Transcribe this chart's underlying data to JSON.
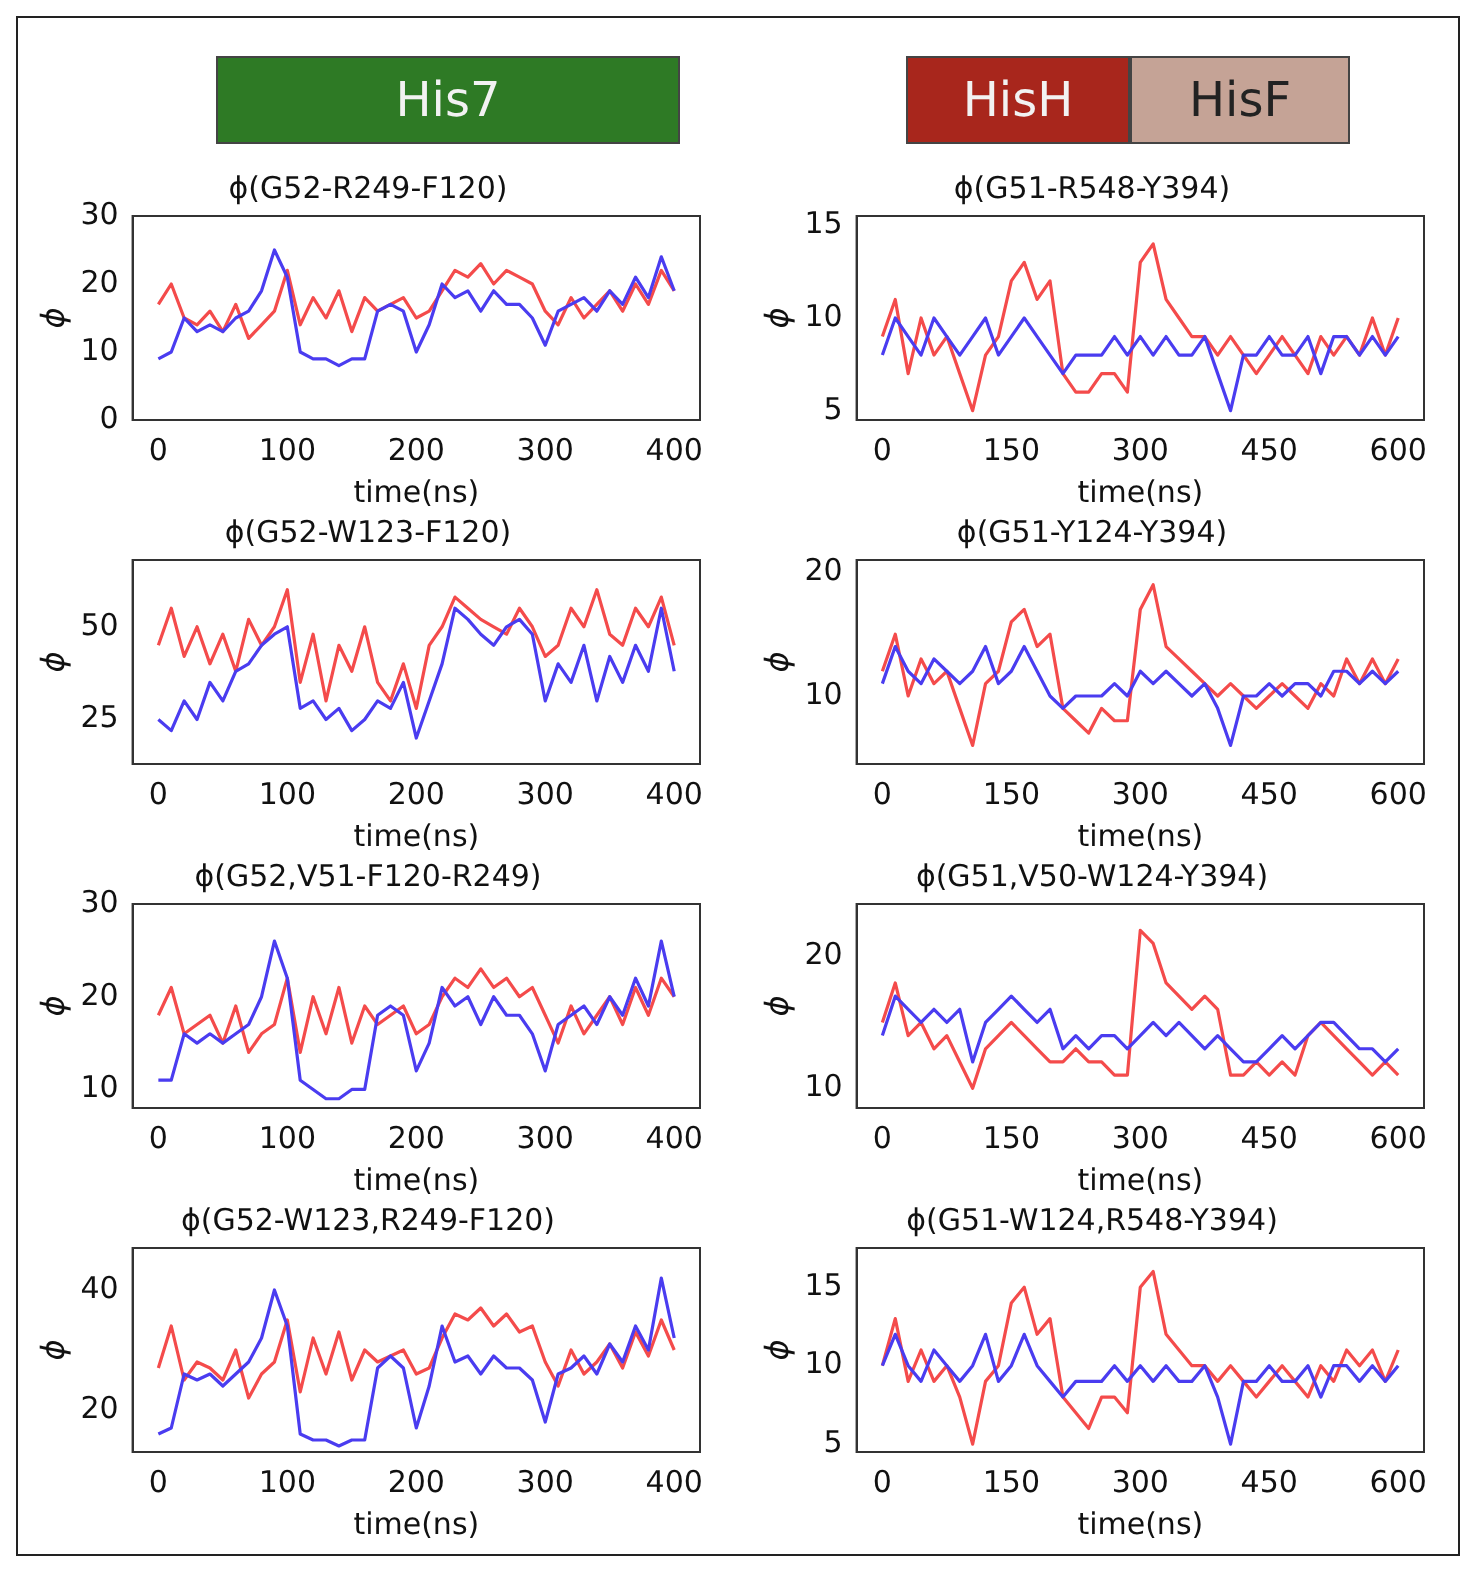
{
  "chart_data": [
    {
      "type": "line",
      "title": "ϕ(G52-R249-F120)",
      "xlabel": "time(ns)",
      "ylabel": "ϕ",
      "annotations": [
        "His7"
      ],
      "xlim": [
        -20,
        420
      ],
      "xticks": [
        0,
        100,
        200,
        300,
        400
      ],
      "ylim": [
        0,
        30
      ],
      "yticks": [
        0,
        10,
        20,
        30
      ],
      "x": [
        0,
        10,
        20,
        30,
        40,
        50,
        60,
        70,
        80,
        90,
        100,
        110,
        120,
        130,
        140,
        150,
        160,
        170,
        180,
        190,
        200,
        210,
        220,
        230,
        240,
        250,
        260,
        270,
        280,
        290,
        300,
        310,
        320,
        330,
        340,
        350,
        360,
        370,
        380,
        390,
        400
      ],
      "series": [
        {
          "color": "#f44b4b",
          "values": [
            17,
            20,
            15,
            14,
            16,
            13,
            17,
            12,
            14,
            16,
            22,
            14,
            18,
            15,
            19,
            13,
            18,
            16,
            17,
            18,
            15,
            16,
            19,
            22,
            21,
            23,
            20,
            22,
            21,
            20,
            16,
            14,
            18,
            15,
            17,
            19,
            16,
            20,
            17,
            22,
            19
          ]
        },
        {
          "color": "#4a3cf0",
          "values": [
            9,
            10,
            15,
            13,
            14,
            13,
            15,
            16,
            19,
            25,
            21,
            10,
            9,
            9,
            8,
            9,
            9,
            16,
            17,
            16,
            10,
            14,
            20,
            18,
            19,
            16,
            19,
            17,
            17,
            15,
            11,
            16,
            17,
            18,
            16,
            19,
            17,
            21,
            18,
            24,
            19
          ]
        }
      ]
    },
    {
      "type": "line",
      "title": "ϕ(G51-R548-Y394)",
      "xlabel": "time(ns)",
      "ylabel": "ϕ",
      "annotations": [
        "HisH",
        "HisF"
      ],
      "xlim": [
        -30,
        630
      ],
      "xticks": [
        0,
        150,
        300,
        450,
        600
      ],
      "ylim": [
        4.5,
        15.5
      ],
      "yticks": [
        5,
        10,
        15
      ],
      "x": [
        0,
        15,
        30,
        45,
        60,
        75,
        90,
        105,
        120,
        135,
        150,
        165,
        180,
        195,
        210,
        225,
        240,
        255,
        270,
        285,
        300,
        315,
        330,
        345,
        360,
        375,
        390,
        405,
        420,
        435,
        450,
        465,
        480,
        495,
        510,
        525,
        540,
        555,
        570,
        585,
        600
      ],
      "series": [
        {
          "color": "#f44b4b",
          "values": [
            9,
            11,
            7,
            10,
            8,
            9,
            7,
            5,
            8,
            9,
            12,
            13,
            11,
            12,
            7,
            6,
            6,
            7,
            7,
            6,
            13,
            14,
            11,
            10,
            9,
            9,
            8,
            9,
            8,
            7,
            8,
            9,
            8,
            7,
            9,
            8,
            9,
            8,
            10,
            8,
            10
          ]
        },
        {
          "color": "#4a3cf0",
          "values": [
            8,
            10,
            9,
            8,
            10,
            9,
            8,
            9,
            10,
            8,
            9,
            10,
            9,
            8,
            7,
            8,
            8,
            8,
            9,
            8,
            9,
            8,
            9,
            8,
            8,
            9,
            7,
            5,
            8,
            8,
            9,
            8,
            8,
            9,
            7,
            9,
            9,
            8,
            9,
            8,
            9
          ]
        }
      ]
    },
    {
      "type": "line",
      "title": "ϕ(G52-W123-F120)",
      "xlabel": "time(ns)",
      "ylabel": "ϕ",
      "xlim": [
        -20,
        420
      ],
      "xticks": [
        0,
        100,
        200,
        300,
        400
      ],
      "ylim": [
        13,
        68
      ],
      "yticks": [
        25,
        50
      ],
      "x": [
        0,
        10,
        20,
        30,
        40,
        50,
        60,
        70,
        80,
        90,
        100,
        110,
        120,
        130,
        140,
        150,
        160,
        170,
        180,
        190,
        200,
        210,
        220,
        230,
        240,
        250,
        260,
        270,
        280,
        290,
        300,
        310,
        320,
        330,
        340,
        350,
        360,
        370,
        380,
        390,
        400
      ],
      "series": [
        {
          "color": "#f44b4b",
          "values": [
            45,
            55,
            42,
            50,
            40,
            48,
            38,
            52,
            45,
            50,
            60,
            35,
            48,
            30,
            45,
            38,
            50,
            35,
            30,
            40,
            28,
            45,
            50,
            58,
            55,
            52,
            50,
            48,
            55,
            50,
            42,
            45,
            55,
            50,
            60,
            48,
            45,
            55,
            50,
            58,
            45
          ]
        },
        {
          "color": "#4a3cf0",
          "values": [
            25,
            22,
            30,
            25,
            35,
            30,
            38,
            40,
            45,
            48,
            50,
            28,
            30,
            25,
            28,
            22,
            25,
            30,
            28,
            35,
            20,
            30,
            40,
            55,
            52,
            48,
            45,
            50,
            52,
            48,
            30,
            40,
            35,
            45,
            30,
            42,
            35,
            45,
            38,
            55,
            38
          ]
        }
      ]
    },
    {
      "type": "line",
      "title": "ϕ(G51-Y124-Y394)",
      "xlabel": "time(ns)",
      "ylabel": "ϕ",
      "xlim": [
        -30,
        630
      ],
      "xticks": [
        0,
        150,
        300,
        450,
        600
      ],
      "ylim": [
        4.5,
        21
      ],
      "yticks": [
        10,
        20
      ],
      "x": [
        0,
        15,
        30,
        45,
        60,
        75,
        90,
        105,
        120,
        135,
        150,
        165,
        180,
        195,
        210,
        225,
        240,
        255,
        270,
        285,
        300,
        315,
        330,
        345,
        360,
        375,
        390,
        405,
        420,
        435,
        450,
        465,
        480,
        495,
        510,
        525,
        540,
        555,
        570,
        585,
        600
      ],
      "series": [
        {
          "color": "#f44b4b",
          "values": [
            12,
            15,
            10,
            13,
            11,
            12,
            9,
            6,
            11,
            12,
            16,
            17,
            14,
            15,
            9,
            8,
            7,
            9,
            8,
            8,
            17,
            19,
            14,
            13,
            12,
            11,
            10,
            11,
            10,
            9,
            10,
            11,
            10,
            9,
            11,
            10,
            13,
            11,
            13,
            11,
            13
          ]
        },
        {
          "color": "#4a3cf0",
          "values": [
            11,
            14,
            12,
            11,
            13,
            12,
            11,
            12,
            14,
            11,
            12,
            14,
            12,
            10,
            9,
            10,
            10,
            10,
            11,
            10,
            12,
            11,
            12,
            11,
            10,
            11,
            9,
            6,
            10,
            10,
            11,
            10,
            11,
            11,
            10,
            12,
            12,
            11,
            12,
            11,
            12
          ]
        }
      ]
    },
    {
      "type": "line",
      "title": "ϕ(G52,V51-F120-R249)",
      "xlabel": "time(ns)",
      "ylabel": "ϕ",
      "xlim": [
        -20,
        420
      ],
      "xticks": [
        0,
        100,
        200,
        300,
        400
      ],
      "ylim": [
        8,
        30
      ],
      "yticks": [
        10,
        20,
        30
      ],
      "x": [
        0,
        10,
        20,
        30,
        40,
        50,
        60,
        70,
        80,
        90,
        100,
        110,
        120,
        130,
        140,
        150,
        160,
        170,
        180,
        190,
        200,
        210,
        220,
        230,
        240,
        250,
        260,
        270,
        280,
        290,
        300,
        310,
        320,
        330,
        340,
        350,
        360,
        370,
        380,
        390,
        400
      ],
      "series": [
        {
          "color": "#f44b4b",
          "values": [
            18,
            21,
            16,
            17,
            18,
            15,
            19,
            14,
            16,
            17,
            22,
            14,
            20,
            16,
            21,
            15,
            19,
            17,
            18,
            19,
            16,
            17,
            20,
            22,
            21,
            23,
            21,
            22,
            20,
            21,
            18,
            15,
            19,
            16,
            18,
            20,
            17,
            21,
            18,
            22,
            20
          ]
        },
        {
          "color": "#4a3cf0",
          "values": [
            11,
            11,
            16,
            15,
            16,
            15,
            16,
            17,
            20,
            26,
            22,
            11,
            10,
            9,
            9,
            10,
            10,
            18,
            19,
            18,
            12,
            15,
            21,
            19,
            20,
            17,
            20,
            18,
            18,
            16,
            12,
            17,
            18,
            19,
            17,
            20,
            18,
            22,
            19,
            26,
            20
          ]
        }
      ]
    },
    {
      "type": "line",
      "title": "ϕ(G51,V50-W124-Y394)",
      "xlabel": "time(ns)",
      "ylabel": "ϕ",
      "xlim": [
        -30,
        630
      ],
      "xticks": [
        0,
        150,
        300,
        450,
        600
      ],
      "ylim": [
        8.5,
        24
      ],
      "yticks": [
        10,
        20
      ],
      "x": [
        0,
        15,
        30,
        45,
        60,
        75,
        90,
        105,
        120,
        135,
        150,
        165,
        180,
        195,
        210,
        225,
        240,
        255,
        270,
        285,
        300,
        315,
        330,
        345,
        360,
        375,
        390,
        405,
        420,
        435,
        450,
        465,
        480,
        495,
        510,
        525,
        540,
        555,
        570,
        585,
        600
      ],
      "series": [
        {
          "color": "#f44b4b",
          "values": [
            15,
            18,
            14,
            15,
            13,
            14,
            12,
            10,
            13,
            14,
            15,
            14,
            13,
            12,
            12,
            13,
            12,
            12,
            11,
            11,
            22,
            21,
            18,
            17,
            16,
            17,
            16,
            11,
            11,
            12,
            11,
            12,
            11,
            14,
            15,
            14,
            13,
            12,
            11,
            12,
            11
          ]
        },
        {
          "color": "#4a3cf0",
          "values": [
            14,
            17,
            16,
            15,
            16,
            15,
            16,
            12,
            15,
            16,
            17,
            16,
            15,
            16,
            13,
            14,
            13,
            14,
            14,
            13,
            14,
            15,
            14,
            15,
            14,
            13,
            14,
            13,
            12,
            12,
            13,
            14,
            13,
            14,
            15,
            15,
            14,
            13,
            13,
            12,
            13
          ]
        }
      ]
    },
    {
      "type": "line",
      "title": "ϕ(G52-W123,R249-F120)",
      "xlabel": "time(ns)",
      "ylabel": "ϕ",
      "xlim": [
        -20,
        420
      ],
      "xticks": [
        0,
        100,
        200,
        300,
        400
      ],
      "ylim": [
        13,
        47
      ],
      "yticks": [
        20,
        40
      ],
      "x": [
        0,
        10,
        20,
        30,
        40,
        50,
        60,
        70,
        80,
        90,
        100,
        110,
        120,
        130,
        140,
        150,
        160,
        170,
        180,
        190,
        200,
        210,
        220,
        230,
        240,
        250,
        260,
        270,
        280,
        290,
        300,
        310,
        320,
        330,
        340,
        350,
        360,
        370,
        380,
        390,
        400
      ],
      "series": [
        {
          "color": "#f44b4b",
          "values": [
            27,
            34,
            25,
            28,
            27,
            25,
            30,
            22,
            26,
            28,
            35,
            23,
            32,
            26,
            33,
            25,
            30,
            28,
            29,
            30,
            26,
            27,
            32,
            36,
            35,
            37,
            34,
            36,
            33,
            34,
            28,
            24,
            30,
            26,
            28,
            31,
            27,
            33,
            29,
            35,
            30
          ]
        },
        {
          "color": "#4a3cf0",
          "values": [
            16,
            17,
            26,
            25,
            26,
            24,
            26,
            28,
            32,
            40,
            34,
            16,
            15,
            15,
            14,
            15,
            15,
            27,
            29,
            27,
            17,
            24,
            34,
            28,
            29,
            26,
            29,
            27,
            27,
            25,
            18,
            26,
            27,
            29,
            26,
            31,
            28,
            34,
            30,
            42,
            32
          ]
        }
      ]
    },
    {
      "type": "line",
      "title": "ϕ(G51-W124,R548-Y394)",
      "xlabel": "time(ns)",
      "ylabel": "ϕ",
      "xlim": [
        -30,
        630
      ],
      "xticks": [
        0,
        150,
        300,
        450,
        600
      ],
      "ylim": [
        4.5,
        17.5
      ],
      "yticks": [
        5,
        10,
        15
      ],
      "x": [
        0,
        15,
        30,
        45,
        60,
        75,
        90,
        105,
        120,
        135,
        150,
        165,
        180,
        195,
        210,
        225,
        240,
        255,
        270,
        285,
        300,
        315,
        330,
        345,
        360,
        375,
        390,
        405,
        420,
        435,
        450,
        465,
        480,
        495,
        510,
        525,
        540,
        555,
        570,
        585,
        600
      ],
      "series": [
        {
          "color": "#f44b4b",
          "values": [
            10,
            13,
            9,
            11,
            9,
            10,
            8,
            5,
            9,
            10,
            14,
            15,
            12,
            13,
            8,
            7,
            6,
            8,
            8,
            7,
            15,
            16,
            12,
            11,
            10,
            10,
            9,
            10,
            9,
            8,
            9,
            10,
            9,
            8,
            10,
            9,
            11,
            10,
            11,
            9,
            11
          ]
        },
        {
          "color": "#4a3cf0",
          "values": [
            10,
            12,
            10,
            9,
            11,
            10,
            9,
            10,
            12,
            9,
            10,
            12,
            10,
            9,
            8,
            9,
            9,
            9,
            10,
            9,
            10,
            9,
            10,
            9,
            9,
            10,
            8,
            5,
            9,
            9,
            10,
            9,
            9,
            10,
            8,
            10,
            10,
            9,
            10,
            9,
            10
          ]
        }
      ]
    }
  ]
}
